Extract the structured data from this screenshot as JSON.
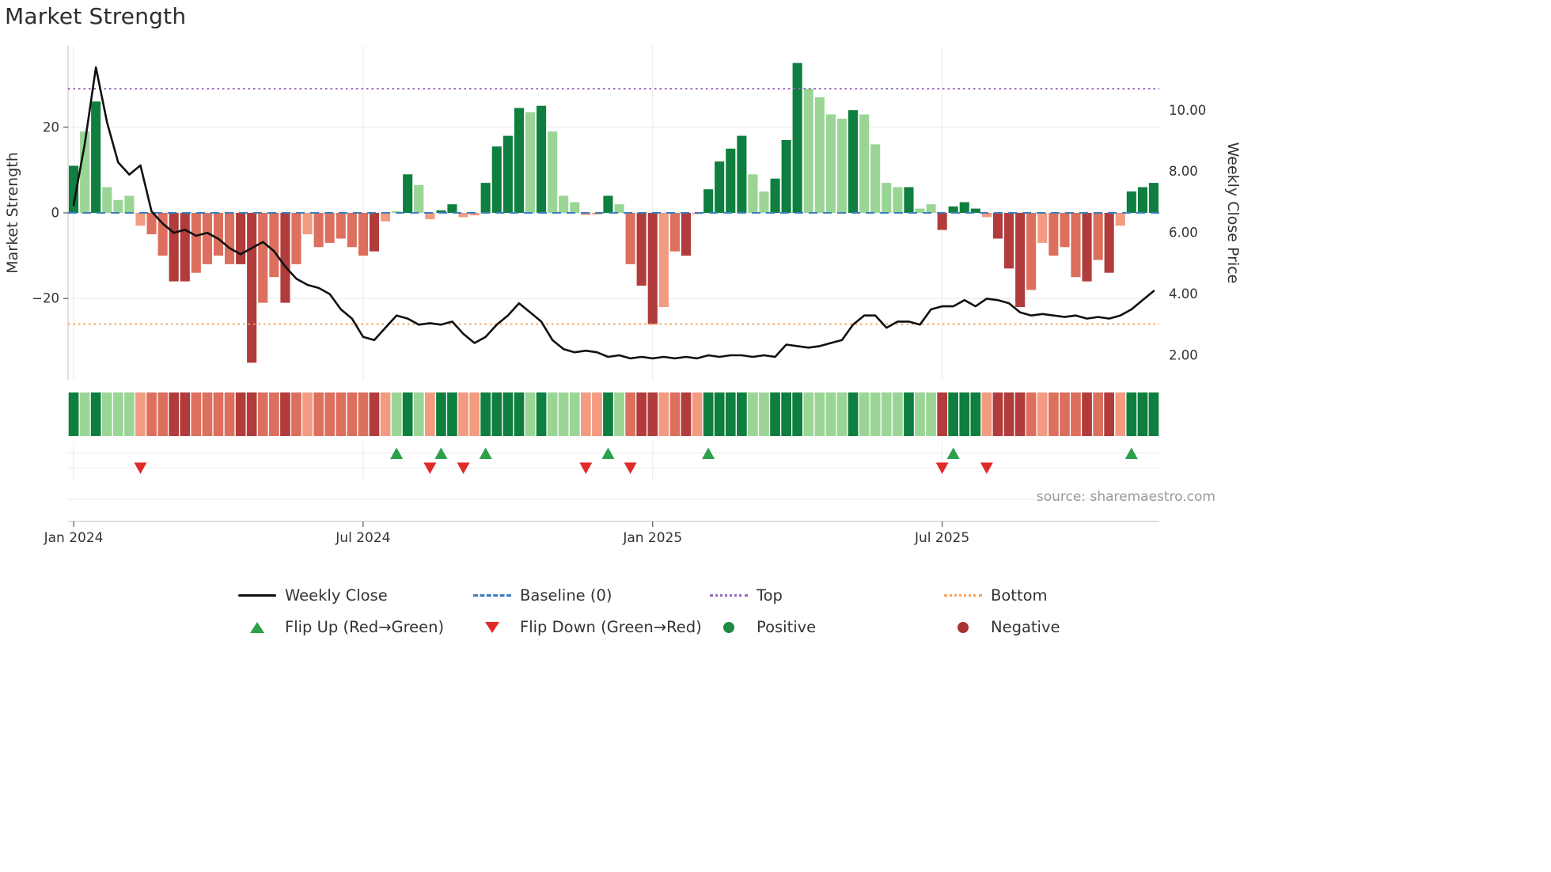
{
  "title": "Market Strength",
  "source_text": "source: sharemaestro.com",
  "colors": {
    "pos": {
      "d": "#0e7f3e",
      "m": "#46a567",
      "l": "#9ad596"
    },
    "neg": {
      "d": "#b23b3b",
      "m": "#dd6f5e",
      "l": "#f29b80"
    },
    "line": "#111111",
    "baseline": "#3a7ebf",
    "top": "#9467bd",
    "bottom": "#f5a35c",
    "flip_up": "#2aa14a",
    "flip_down": "#e02b2b",
    "positive_dot": "#1f8a42",
    "negative_dot": "#a93232",
    "grid": "#e9e9e9",
    "spine": "#cccccc",
    "tick_mark": "#555555"
  },
  "axes": {
    "left_label": "Market Strength",
    "right_label": "Weekly Close Price",
    "left_ticks": [
      {
        "v": 20,
        "label": "20"
      },
      {
        "v": 0,
        "label": "0"
      },
      {
        "v": -20,
        "label": "−20"
      }
    ],
    "right_ticks": [
      {
        "v": 10,
        "label": "10.00"
      },
      {
        "v": 8,
        "label": "8.00"
      },
      {
        "v": 6,
        "label": "6.00"
      },
      {
        "v": 4,
        "label": "4.00"
      },
      {
        "v": 2,
        "label": "2.00"
      }
    ],
    "x_ticks": [
      {
        "week": 0,
        "label": "Jan 2024"
      },
      {
        "week": 26,
        "label": "Jul 2024"
      },
      {
        "week": 52,
        "label": "Jan 2025"
      },
      {
        "week": 78,
        "label": "Jul 2025"
      }
    ],
    "left_ylim": [
      -39,
      39
    ],
    "right_ylim": [
      1.2,
      12.1
    ]
  },
  "chart_data": {
    "type": [
      "bar",
      "line",
      "heatmap"
    ],
    "x_unit": "weekly, Jan 2024 through Nov 2025",
    "n_weeks": 98,
    "title": "Market Strength",
    "ylabel_left": "Market Strength",
    "ylabel_right": "Weekly Close Price",
    "baseline": 0,
    "top_level": 29,
    "bottom_level": -26,
    "strength_values": [
      11,
      19,
      26,
      6,
      3,
      4,
      -3,
      -5,
      -10,
      -16,
      -16,
      -14,
      -12,
      -10,
      -12,
      -12,
      -35,
      -21,
      -15,
      -21,
      -12,
      -5,
      -8,
      -7,
      -6,
      -8,
      -10,
      -9,
      -2,
      0.4,
      9,
      6.5,
      -1.5,
      0.6,
      2,
      -1,
      -0.6,
      7,
      15.5,
      18,
      24.5,
      23.5,
      25,
      19,
      4,
      2.5,
      -0.5,
      -0.4,
      4,
      2,
      -12,
      -17,
      -26,
      -22,
      -9,
      -10,
      -0.3,
      5.5,
      12,
      15,
      18,
      9,
      5,
      8,
      17,
      35,
      29,
      27,
      23,
      22,
      24,
      23,
      16,
      7,
      6,
      6,
      1,
      2,
      -4,
      1.5,
      2.5,
      1,
      -1,
      -6,
      -13,
      -22,
      -18,
      -7,
      -10,
      -8,
      -15,
      -16,
      -11,
      -14,
      -3,
      5,
      6,
      7
    ],
    "strength_shades": [
      "d",
      "l",
      "d",
      "l",
      "l",
      "l",
      "l",
      "m",
      "m",
      "d",
      "d",
      "m",
      "m",
      "m",
      "m",
      "d",
      "d",
      "m",
      "m",
      "d",
      "m",
      "l",
      "m",
      "m",
      "m",
      "m",
      "m",
      "d",
      "l",
      "l",
      "d",
      "l",
      "l",
      "d",
      "d",
      "l",
      "l",
      "d",
      "d",
      "d",
      "d",
      "l",
      "d",
      "l",
      "l",
      "l",
      "l",
      "l",
      "d",
      "l",
      "m",
      "d",
      "d",
      "l",
      "m",
      "d",
      "l",
      "d",
      "d",
      "d",
      "d",
      "l",
      "l",
      "d",
      "d",
      "d",
      "l",
      "l",
      "l",
      "l",
      "d",
      "l",
      "l",
      "l",
      "l",
      "d",
      "l",
      "l",
      "d",
      "d",
      "d",
      "d",
      "l",
      "d",
      "d",
      "d",
      "m",
      "l",
      "m",
      "m",
      "m",
      "d",
      "m",
      "d",
      "l",
      "d",
      "d",
      "d"
    ],
    "weekly_close": [
      6.9,
      8.9,
      11.4,
      9.6,
      8.3,
      7.9,
      8.2,
      6.7,
      6.3,
      6.0,
      6.1,
      5.9,
      6.0,
      5.8,
      5.5,
      5.3,
      5.5,
      5.7,
      5.4,
      4.9,
      4.5,
      4.3,
      4.2,
      4.0,
      3.5,
      3.2,
      2.6,
      2.5,
      2.9,
      3.3,
      3.2,
      3.0,
      3.05,
      3.0,
      3.1,
      2.7,
      2.4,
      2.6,
      3.0,
      3.3,
      3.7,
      3.4,
      3.1,
      2.5,
      2.2,
      2.1,
      2.15,
      2.1,
      1.95,
      2.0,
      1.9,
      1.95,
      1.9,
      1.95,
      1.9,
      1.95,
      1.9,
      2.0,
      1.95,
      2.0,
      2.0,
      1.95,
      2.0,
      1.95,
      2.35,
      2.3,
      2.25,
      2.3,
      2.4,
      2.5,
      3.0,
      3.3,
      3.3,
      2.9,
      3.1,
      3.1,
      3.0,
      3.5,
      3.6,
      3.6,
      3.8,
      3.6,
      3.85,
      3.8,
      3.7,
      3.4,
      3.3,
      3.35,
      3.3,
      3.25,
      3.3,
      3.2,
      3.25,
      3.2,
      3.3,
      3.5,
      3.8,
      4.1
    ],
    "flip_up_weeks": [
      29,
      33,
      37,
      48,
      57,
      79,
      95
    ],
    "flip_down_weeks": [
      6,
      32,
      35,
      46,
      50,
      78,
      82
    ]
  },
  "legend": {
    "weekly_close": "Weekly Close",
    "baseline": "Baseline (0)",
    "top": "Top",
    "bottom": "Bottom",
    "flip_up": "Flip Up (Red→Green)",
    "flip_down": "Flip Down (Green→Red)",
    "positive": "Positive",
    "negative": "Negative"
  }
}
